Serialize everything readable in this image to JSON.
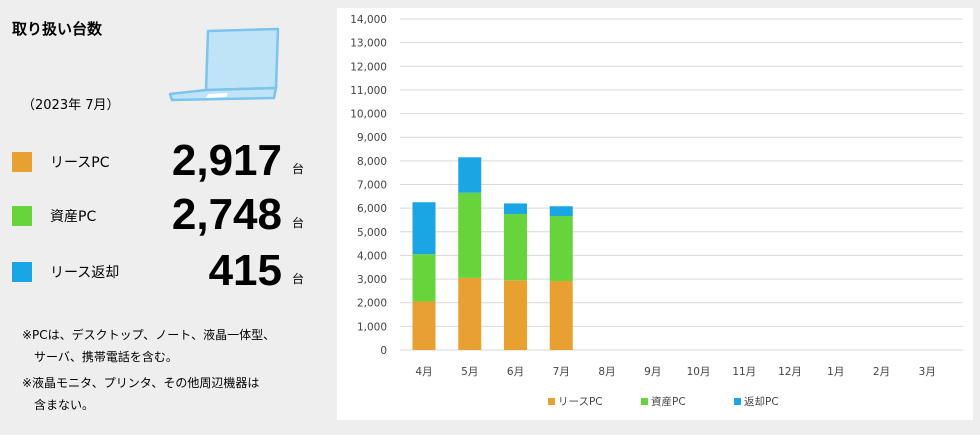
{
  "panel": {
    "title": "取り扱い台数",
    "period": "（2023年 7月）",
    "stats": [
      {
        "label": "リースPC",
        "value": "2,917",
        "unit": "台",
        "color": "#e8a030"
      },
      {
        "label": "資産PC",
        "value": "2,748",
        "unit": "台",
        "color": "#66d43a"
      },
      {
        "label": "リース返却",
        "value": "415",
        "unit": "台",
        "color": "#1aa6e4"
      }
    ],
    "notes": [
      "※PCは、デスクトップ、ノート、液晶一体型、",
      "　サーバ、携帯電話を含む。",
      "※液晶モニタ、プリンタ、その他周辺機器は",
      "　含まない。"
    ]
  },
  "chart_data": {
    "type": "bar",
    "stacked": true,
    "categories": [
      "4月",
      "5月",
      "6月",
      "7月",
      "8月",
      "9月",
      "10月",
      "11月",
      "12月",
      "1月",
      "2月",
      "3月"
    ],
    "series": [
      {
        "name": "リースPC",
        "color": "#e8a030",
        "values": [
          2050,
          3050,
          2950,
          2917,
          null,
          null,
          null,
          null,
          null,
          null,
          null,
          null
        ]
      },
      {
        "name": "資産PC",
        "color": "#66d43a",
        "values": [
          2000,
          3600,
          2800,
          2748,
          null,
          null,
          null,
          null,
          null,
          null,
          null,
          null
        ]
      },
      {
        "name": "返却PC",
        "color": "#1aa6e4",
        "values": [
          2200,
          1500,
          450,
          415,
          null,
          null,
          null,
          null,
          null,
          null,
          null,
          null
        ]
      }
    ],
    "ylim": [
      0,
      14000
    ],
    "yticks": [
      "0",
      "1,000",
      "2,000",
      "3,000",
      "4,000",
      "5,000",
      "6,000",
      "7,000",
      "8,000",
      "9,000",
      "10,000",
      "11,000",
      "12,000",
      "13,000",
      "14,000"
    ],
    "grid": true,
    "legend": "bottom"
  }
}
